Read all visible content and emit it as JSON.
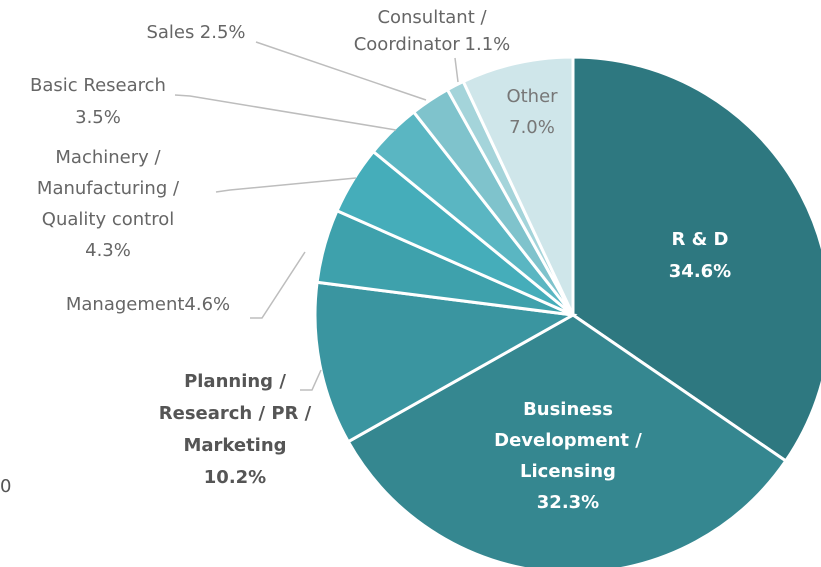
{
  "chart_data": {
    "type": "pie",
    "categories": [
      "R & D",
      "Business\nDevelopment /\nLicensing",
      "Planning /\nResearch / PR /\nMarketing",
      "Management",
      "Machinery /\nManufacturing /\nQuality control",
      "Basic Research",
      "Sales",
      "Consultant /\nCoordinator",
      "Other"
    ],
    "values": [
      34.6,
      32.3,
      10.2,
      4.6,
      4.3,
      3.5,
      2.5,
      1.1,
      7.0
    ],
    "value_labels": [
      "34.6%",
      "32.3%",
      "10.2%",
      "4.6%",
      "4.3%",
      "3.5%",
      "2.5%",
      "1.1%",
      "7.0%"
    ],
    "colors": [
      "#2e7880",
      "#358790",
      "#3a95a0",
      "#3ea1ac",
      "#45adba",
      "#5ab6c2",
      "#7fc3cc",
      "#a4d4da",
      "#cfe6ea"
    ],
    "annotations": [
      "0"
    ]
  }
}
